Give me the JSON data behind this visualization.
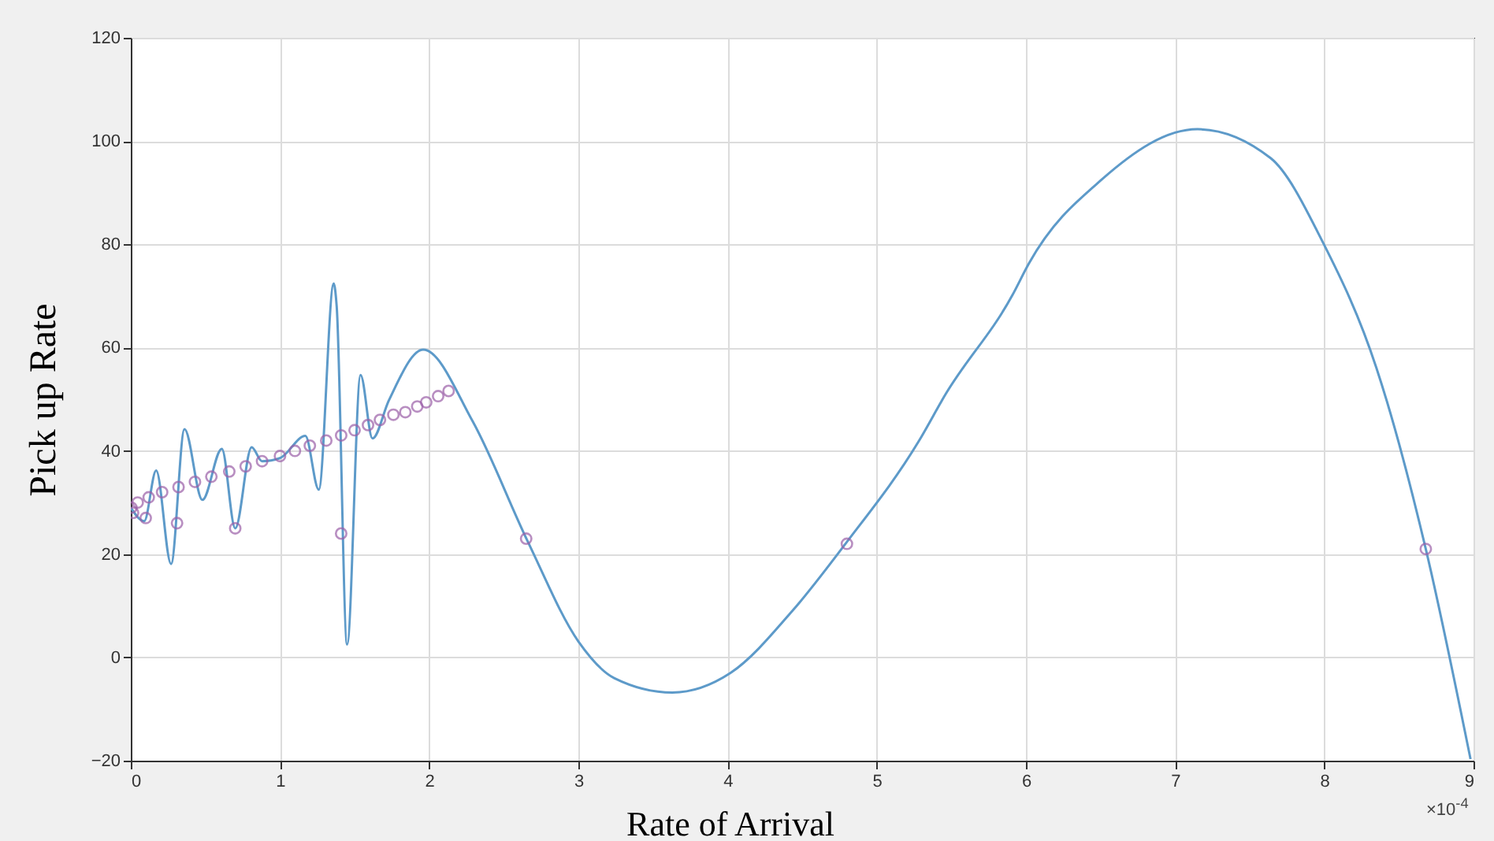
{
  "chart_data": {
    "type": "line",
    "xlabel": "Rate of Arrival",
    "ylabel": "Pick up Rate",
    "annotations": [
      "×10$^{-4}$"
    ],
    "xlim": [
      0,
      9
    ],
    "xticks": [
      0,
      1,
      2,
      3,
      4,
      5,
      6,
      7,
      8,
      9
    ],
    "ylim": [
      -20,
      120
    ],
    "yticks": [
      -20,
      0,
      20,
      40,
      60,
      80,
      100,
      120
    ],
    "grid": true,
    "series": [
      {
        "type": "line",
        "color": "#5d9ac9",
        "line_style": "solid",
        "x": [
          0,
          0.09,
          0.17,
          0.27,
          0.36,
          0.48,
          0.61,
          0.7,
          0.81,
          0.88,
          1.0,
          1.17,
          1.26,
          1.36,
          1.38,
          1.45,
          1.54,
          1.62,
          1.73,
          1.96,
          2.29,
          2.66,
          3.0,
          3.24,
          3.63,
          4.02,
          4.44,
          4.79,
          5.28,
          5.46,
          5.91,
          6.02,
          6.51,
          7.15,
          7.64,
          7.99,
          8.35,
          8.68,
          8.98
        ],
        "values": [
          29,
          26.4,
          36.2,
          18.1,
          44.2,
          30.5,
          40.4,
          25,
          40.7,
          38,
          38.6,
          42.9,
          32.5,
          72.4,
          68,
          2.5,
          54.7,
          42.4,
          49.8,
          59.6,
          45.8,
          22.5,
          3.1,
          -4,
          -6.8,
          -3,
          9.2,
          22,
          41.8,
          50.9,
          70.2,
          76.3,
          92.6,
          102.3,
          96.7,
          80.4,
          56,
          21,
          -19.7
        ]
      },
      {
        "type": "scatter",
        "color": "#9b5fa8",
        "marker": "circle",
        "x": [
          0.004,
          0.015,
          0.046,
          0.1,
          0.12,
          0.21,
          0.31,
          0.32,
          0.43,
          0.54,
          0.66,
          0.7,
          0.77,
          0.88,
          1.0,
          1.1,
          1.2,
          1.31,
          1.41,
          1.41,
          1.5,
          1.59,
          1.67,
          1.76,
          1.84,
          1.92,
          1.98,
          2.06,
          2.13,
          2.65,
          4.8,
          8.68
        ],
        "values": [
          29,
          28,
          30,
          27,
          31,
          32,
          26,
          33,
          34,
          35,
          36,
          25,
          37,
          38,
          39,
          40,
          41,
          42,
          43,
          24,
          44,
          45,
          46,
          47,
          47.5,
          48.6,
          49.4,
          50.6,
          51.6,
          23,
          22,
          21
        ]
      }
    ]
  }
}
